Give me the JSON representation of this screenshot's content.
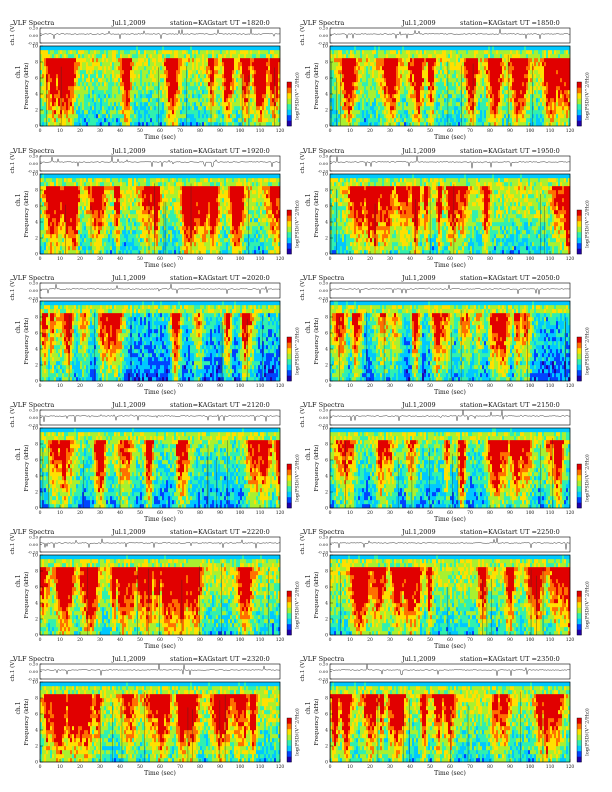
{
  "figure": {
    "header_title": "VLF Spectra",
    "date": "Jul.1,2009",
    "station": "station=KAG",
    "start_prefix": "start  UT  ="
  },
  "axes": {
    "time_xlabel": "Time  (sec)",
    "freq_ylabel": "Frequency  (kHz)",
    "channel_label": "ch.1",
    "amp_ylabel": "ch.1 (V)",
    "amp_ticks": [
      "0.20",
      "0.00",
      "-0.20"
    ],
    "colorbar_label": "log(PSD/(V^2/Hz))"
  },
  "colors": {
    "frame": "#000000",
    "colormap": [
      "#1f00a8",
      "#0044ff",
      "#00c8ff",
      "#30f0b0",
      "#a8f030",
      "#ffe000",
      "#ff7000",
      "#e10000"
    ]
  },
  "chart_data": [
    {
      "type": "heatmap",
      "panel": "row1-left",
      "start_ut": "1820:0",
      "x_range": [
        0,
        120
      ],
      "x_ticks": [
        0,
        10,
        20,
        30,
        40,
        50,
        60,
        70,
        80,
        90,
        100,
        110,
        120
      ],
      "y_range": [
        0,
        10
      ],
      "y_ticks": [
        0,
        2,
        4,
        6,
        8,
        10
      ],
      "amp_range": [
        -0.2,
        0.2
      ],
      "intensity": "high"
    },
    {
      "type": "heatmap",
      "panel": "row1-right",
      "start_ut": "1850:0",
      "x_range": [
        0,
        120
      ],
      "x_ticks": [
        0,
        10,
        20,
        30,
        40,
        50,
        60,
        70,
        80,
        90,
        100,
        110,
        120
      ],
      "y_range": [
        0,
        10
      ],
      "y_ticks": [
        0,
        2,
        4,
        6,
        8,
        10
      ],
      "amp_range": [
        -0.2,
        0.2
      ],
      "intensity": "high"
    },
    {
      "type": "heatmap",
      "panel": "row2-left",
      "start_ut": "1920:0",
      "x_range": [
        0,
        120
      ],
      "x_ticks": [
        0,
        10,
        20,
        30,
        40,
        50,
        60,
        70,
        80,
        90,
        100,
        110,
        120
      ],
      "y_range": [
        0,
        10
      ],
      "y_ticks": [
        0,
        2,
        4,
        6,
        8,
        10
      ],
      "amp_range": [
        -0.2,
        0.2
      ],
      "intensity": "high"
    },
    {
      "type": "heatmap",
      "panel": "row2-right",
      "start_ut": "1950:0",
      "x_range": [
        0,
        120
      ],
      "x_ticks": [
        0,
        10,
        20,
        30,
        40,
        50,
        60,
        70,
        80,
        90,
        100,
        110,
        120
      ],
      "y_range": [
        0,
        10
      ],
      "y_ticks": [
        0,
        2,
        4,
        6,
        8,
        10
      ],
      "amp_range": [
        -0.2,
        0.2
      ],
      "intensity": "high"
    },
    {
      "type": "heatmap",
      "panel": "row3-left",
      "start_ut": "2020:0",
      "x_range": [
        0,
        120
      ],
      "x_ticks": [
        0,
        10,
        20,
        30,
        40,
        50,
        60,
        70,
        80,
        90,
        100,
        110,
        120
      ],
      "y_range": [
        0,
        10
      ],
      "y_ticks": [
        0,
        2,
        4,
        6,
        8,
        10
      ],
      "amp_range": [
        -0.2,
        0.2
      ],
      "intensity": "low"
    },
    {
      "type": "heatmap",
      "panel": "row3-right",
      "start_ut": "2050:0",
      "x_range": [
        0,
        120
      ],
      "x_ticks": [
        0,
        10,
        20,
        30,
        40,
        50,
        60,
        70,
        80,
        90,
        100,
        110,
        120
      ],
      "y_range": [
        0,
        10
      ],
      "y_ticks": [
        0,
        2,
        4,
        6,
        8,
        10
      ],
      "amp_range": [
        -0.2,
        0.2
      ],
      "intensity": "low"
    },
    {
      "type": "heatmap",
      "panel": "row4-left",
      "start_ut": "2120:0",
      "x_range": [
        0,
        120
      ],
      "x_ticks": [
        0,
        10,
        20,
        30,
        40,
        50,
        60,
        70,
        80,
        90,
        100,
        110,
        120
      ],
      "y_range": [
        0,
        10
      ],
      "y_ticks": [
        0,
        2,
        4,
        6,
        8,
        10
      ],
      "amp_range": [
        -0.2,
        0.2
      ],
      "intensity": "medium"
    },
    {
      "type": "heatmap",
      "panel": "row4-right",
      "start_ut": "2150:0",
      "x_range": [
        0,
        120
      ],
      "x_ticks": [
        0,
        10,
        20,
        30,
        40,
        50,
        60,
        70,
        80,
        90,
        100,
        110,
        120
      ],
      "y_range": [
        0,
        10
      ],
      "y_ticks": [
        0,
        2,
        4,
        6,
        8,
        10
      ],
      "amp_range": [
        -0.2,
        0.2
      ],
      "intensity": "medium"
    },
    {
      "type": "heatmap",
      "panel": "row5-left",
      "start_ut": "2220:0",
      "x_range": [
        0,
        120
      ],
      "x_ticks": [
        0,
        10,
        20,
        30,
        40,
        50,
        60,
        70,
        80,
        90,
        100,
        110,
        120
      ],
      "y_range": [
        0,
        10
      ],
      "y_ticks": [
        0,
        2,
        4,
        6,
        8,
        10
      ],
      "amp_range": [
        -0.2,
        0.2
      ],
      "intensity": "high"
    },
    {
      "type": "heatmap",
      "panel": "row5-right",
      "start_ut": "2250:0",
      "x_range": [
        0,
        120
      ],
      "x_ticks": [
        0,
        10,
        20,
        30,
        40,
        50,
        60,
        70,
        80,
        90,
        100,
        110,
        120
      ],
      "y_range": [
        0,
        10
      ],
      "y_ticks": [
        0,
        2,
        4,
        6,
        8,
        10
      ],
      "amp_range": [
        -0.2,
        0.2
      ],
      "intensity": "high"
    },
    {
      "type": "heatmap",
      "panel": "row6-left",
      "start_ut": "2320:0",
      "x_range": [
        0,
        120
      ],
      "x_ticks": [
        0,
        10,
        20,
        30,
        40,
        50,
        60,
        70,
        80,
        90,
        100,
        110,
        120
      ],
      "y_range": [
        0,
        10
      ],
      "y_ticks": [
        0,
        2,
        4,
        6,
        8,
        10
      ],
      "amp_range": [
        -0.2,
        0.2
      ],
      "intensity": "high"
    },
    {
      "type": "heatmap",
      "panel": "row6-right",
      "start_ut": "2350:0",
      "x_range": [
        0,
        120
      ],
      "x_ticks": [
        0,
        10,
        20,
        30,
        40,
        50,
        60,
        70,
        80,
        90,
        100,
        110,
        120
      ],
      "y_range": [
        0,
        10
      ],
      "y_ticks": [
        0,
        2,
        4,
        6,
        8,
        10
      ],
      "amp_range": [
        -0.2,
        0.2
      ],
      "intensity": "high"
    }
  ]
}
